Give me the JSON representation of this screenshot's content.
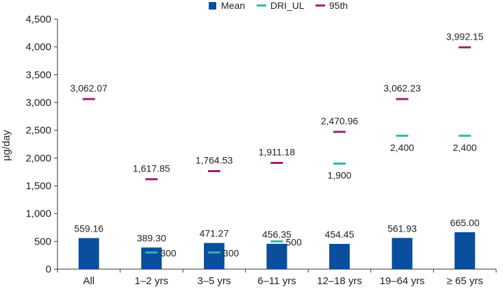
{
  "chart_data": {
    "type": "bar",
    "title": "",
    "xlabel": "",
    "ylabel": "µg/day",
    "ylim": [
      0,
      4500
    ],
    "yticks": [
      0,
      500,
      1000,
      1500,
      2000,
      2500,
      3000,
      3500,
      4000,
      4500
    ],
    "ytick_labels": [
      "0",
      "500",
      "1,000",
      "1,500",
      "2,000",
      "2,500",
      "3,000",
      "3,500",
      "4,000",
      "4,500"
    ],
    "grid": false,
    "legend_position": "top-center",
    "categories": [
      "All",
      "1–2 yrs",
      "3–5 yrs",
      "6–11 yrs",
      "12–18 yrs",
      "19–64 yrs",
      "≥ 65 yrs"
    ],
    "series": [
      {
        "name": "Mean",
        "kind": "bar",
        "color": "#0a4f9e",
        "values": [
          559.16,
          389.3,
          471.27,
          456.35,
          454.45,
          561.93,
          665.0
        ],
        "labels": [
          "559.16",
          "389.30",
          "471.27",
          "456.35",
          "454.45",
          "561.93",
          "665.00"
        ]
      },
      {
        "name": "DRI_UL",
        "kind": "marker",
        "color": "#2bb8a8",
        "values": [
          null,
          300,
          300,
          500,
          1900,
          2400,
          2400
        ],
        "labels": [
          null,
          "300",
          "300",
          "500",
          "1,900",
          "2,400",
          "2,400"
        ]
      },
      {
        "name": "95th",
        "kind": "marker",
        "color": "#9c1e72",
        "values": [
          3062.07,
          1617.85,
          1764.53,
          1911.18,
          2470.96,
          3062.23,
          3992.15
        ],
        "labels": [
          "3,062.07",
          "1,617.85",
          "1,764.53",
          "1,911.18",
          "2,470.96",
          "3,062.23",
          "3,992.15"
        ]
      }
    ]
  }
}
